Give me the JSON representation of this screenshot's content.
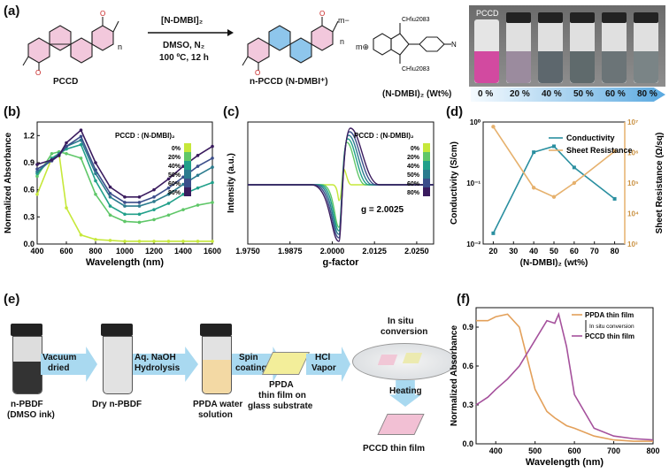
{
  "panels": {
    "a": {
      "label": "(a)",
      "reagent_line1": "[N-DMBI]₂",
      "reagent_line2": "DMSO, N₂",
      "reagent_line3": "100 ºC, 12 h",
      "left_name": "PCCD",
      "right_name": "n-PCCD (N-DMBI⁺)",
      "right_charge": "m−",
      "right_m": "m⊕",
      "repeat_n": "n",
      "photo_label": "PCCD",
      "wt_axis_label": "(N-DMBI)₂ (Wt%)",
      "wt_ticks": [
        "0 %",
        "20 %",
        "40 %",
        "50 %",
        "60 %",
        "80 %"
      ]
    },
    "b": {
      "label": "(b)"
    },
    "c": {
      "label": "(c)"
    },
    "d": {
      "label": "(d)"
    },
    "e": {
      "label": "(e)",
      "vial1": [
        "n-PBDF",
        "(DMSO ink)"
      ],
      "step1": [
        "Vacuum",
        "dried"
      ],
      "vial2": [
        "Dry n-PBDF"
      ],
      "step2": [
        "Aq. NaOH",
        "Hydrolysis"
      ],
      "vial3": [
        "PPDA water",
        "solution"
      ],
      "step3": [
        "Spin",
        "coating"
      ],
      "film1": [
        "PPDA",
        "thin film on",
        "glass substrate"
      ],
      "step4": [
        "HCl",
        "Vapor"
      ],
      "insitu": [
        "In situ",
        "conversion"
      ],
      "heating": "Heating",
      "final": "PCCD thin film"
    },
    "f": {
      "label": "(f)"
    }
  },
  "chart_data": [
    {
      "type": "line",
      "title": "",
      "xlabel": "Wavelength (nm)",
      "ylabel": "Normalized Absorbance",
      "xlim": [
        400,
        1600
      ],
      "ylim": [
        0,
        1.35
      ],
      "xticks": [
        400,
        600,
        800,
        1000,
        1200,
        1400,
        1600
      ],
      "yticks": [
        "0.0",
        "0.3",
        "0.6",
        "0.9",
        "1.2"
      ],
      "legend_title": "PCCD : (N-DMBI)₂",
      "legend_entries": [
        "0%",
        "20%",
        "40%",
        "50%",
        "60%",
        "80%"
      ],
      "colors": [
        "#c6e83a",
        "#5fc768",
        "#21a08a",
        "#2b7b8e",
        "#3b4d8a",
        "#3a1b5e"
      ],
      "x": [
        400,
        500,
        550,
        600,
        700,
        800,
        900,
        1000,
        1100,
        1200,
        1300,
        1400,
        1500,
        1600
      ],
      "series": [
        {
          "name": "0%",
          "values": [
            0.55,
            0.95,
            1.0,
            0.4,
            0.1,
            0.05,
            0.04,
            0.03,
            0.03,
            0.03,
            0.03,
            0.03,
            0.03,
            0.03
          ]
        },
        {
          "name": "20%",
          "values": [
            0.75,
            1.0,
            1.02,
            1.0,
            0.95,
            0.55,
            0.32,
            0.25,
            0.24,
            0.27,
            0.32,
            0.38,
            0.43,
            0.46
          ]
        },
        {
          "name": "40%",
          "values": [
            0.78,
            0.95,
            1.0,
            1.05,
            1.1,
            0.7,
            0.42,
            0.33,
            0.33,
            0.38,
            0.45,
            0.55,
            0.62,
            0.68
          ]
        },
        {
          "name": "50%",
          "values": [
            0.8,
            0.93,
            1.0,
            1.08,
            1.15,
            0.78,
            0.52,
            0.42,
            0.42,
            0.47,
            0.55,
            0.66,
            0.76,
            0.85
          ]
        },
        {
          "name": "60%",
          "values": [
            0.83,
            0.92,
            0.98,
            1.08,
            1.19,
            0.82,
            0.56,
            0.46,
            0.46,
            0.52,
            0.62,
            0.74,
            0.86,
            0.95
          ]
        },
        {
          "name": "80%",
          "values": [
            0.88,
            0.93,
            0.98,
            1.12,
            1.26,
            0.9,
            0.63,
            0.52,
            0.52,
            0.6,
            0.72,
            0.86,
            0.98,
            1.08
          ]
        }
      ]
    },
    {
      "type": "line",
      "title": "",
      "xlabel": "g-factor",
      "ylabel": "Intensity (a.u.)",
      "xlim": [
        1.975,
        2.03
      ],
      "xticks": [
        "1.9750",
        "1.9875",
        "2.0000",
        "2.0125",
        "2.0250"
      ],
      "annotation": "g = 2.0025",
      "legend_title": "PCCD : (N-DMBI)₂",
      "legend_entries": [
        "0%",
        "20%",
        "40%",
        "50%",
        "60%",
        "80%"
      ]
    },
    {
      "type": "line",
      "title": "",
      "xlabel": "(N-DMBI)₂ (wt%)",
      "ylabel": "Conductivity (S/cm)",
      "y2label": "Sheet Resistance (Ω/sq)",
      "x": [
        20,
        40,
        50,
        60,
        80
      ],
      "xlim": [
        15,
        85
      ],
      "xticks": [
        20,
        30,
        40,
        50,
        60,
        70,
        80
      ],
      "yscale": "log",
      "series": [
        {
          "name": "Conductivity",
          "values": [
            0.015,
            0.32,
            0.4,
            0.18,
            0.055
          ],
          "color": "#2a8fa0"
        },
        {
          "name": "Sheet Resistance",
          "values": [
            7000000,
            70000,
            35000,
            100000,
            1100000
          ],
          "color": "#e6b16d"
        }
      ],
      "yticks_left": [
        "10⁻²",
        "10⁻¹",
        "10⁰"
      ],
      "yticks_right": [
        "10³",
        "10⁴",
        "10⁵",
        "10⁶",
        "10⁷"
      ]
    },
    {
      "type": "line",
      "title": "",
      "xlabel": "Wavelength (nm)",
      "ylabel": "Normalized Absorbance",
      "xlim": [
        350,
        800
      ],
      "ylim": [
        0,
        1.05
      ],
      "xticks": [
        400,
        500,
        600,
        700,
        800
      ],
      "yticks": [
        "0.0",
        "0.3",
        "0.6",
        "0.9"
      ],
      "legend": [
        "PPDA thin film",
        "In situ conversion",
        "PCCD thin film"
      ],
      "x": [
        350,
        380,
        400,
        430,
        460,
        500,
        530,
        550,
        560,
        580,
        600,
        650,
        700,
        750,
        800
      ],
      "series": [
        {
          "name": "PPDA thin film",
          "color": "#e3a05a",
          "values": [
            0.95,
            0.95,
            0.98,
            1.0,
            0.9,
            0.42,
            0.25,
            0.2,
            0.18,
            0.14,
            0.12,
            0.06,
            0.03,
            0.02,
            0.02
          ]
        },
        {
          "name": "PCCD thin film",
          "color": "#a5519c",
          "values": [
            0.3,
            0.36,
            0.42,
            0.5,
            0.6,
            0.8,
            0.95,
            0.93,
            1.0,
            0.75,
            0.38,
            0.12,
            0.06,
            0.04,
            0.03
          ]
        }
      ]
    }
  ]
}
